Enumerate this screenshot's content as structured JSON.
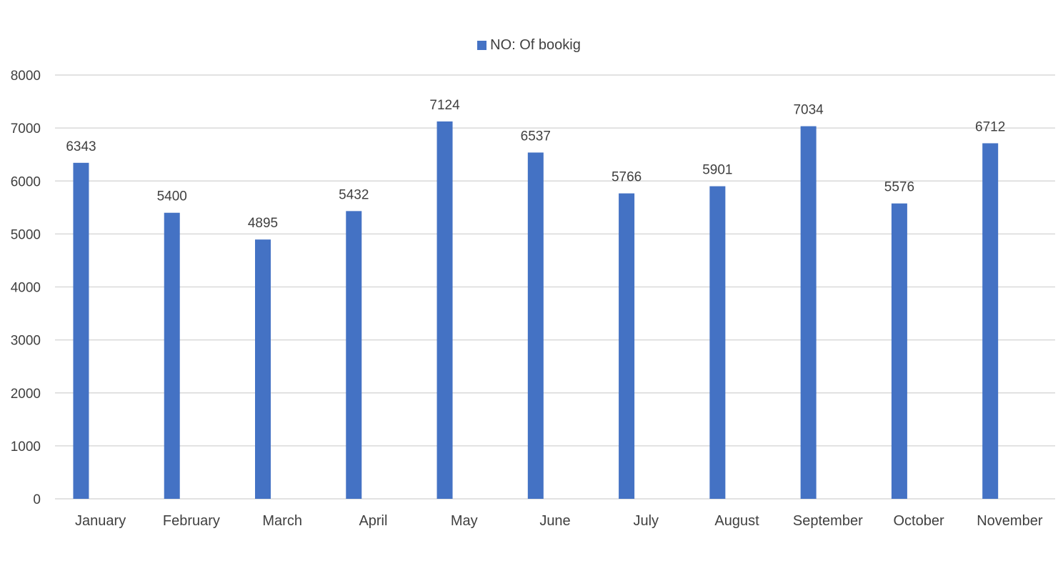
{
  "chart_data": {
    "type": "bar",
    "title": "",
    "xlabel": "",
    "ylabel": "",
    "categories": [
      "January",
      "February",
      "March",
      "April",
      "May",
      "June",
      "July",
      "August",
      "September",
      "October",
      "November"
    ],
    "series": [
      {
        "name": "NO: Of bookig",
        "values": [
          6343,
          5400,
          4895,
          5432,
          7124,
          6537,
          5766,
          5901,
          7034,
          5576,
          6712
        ]
      }
    ],
    "ylim": [
      0,
      8000
    ],
    "yticks": [
      0,
      1000,
      2000,
      3000,
      4000,
      5000,
      6000,
      7000,
      8000
    ],
    "grid": true,
    "legend_position": "top-center",
    "data_labels": true,
    "colors": {
      "bar": "#4472C4",
      "grid": "#d9d9d9",
      "text": "#404040"
    }
  }
}
